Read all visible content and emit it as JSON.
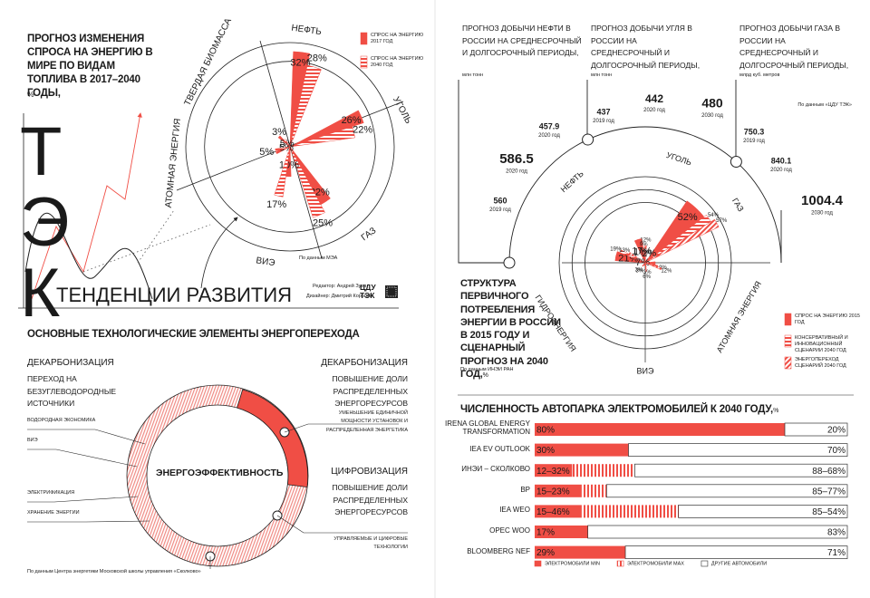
{
  "tek": {
    "letters": [
      "Т",
      "Э",
      "К"
    ],
    "heading": "ТЕНДЕНЦИИ РАЗВИТИЯ",
    "editor": "Редактор: Андрей Зуев",
    "designer": "Дизайнер: Дмитрий Королев",
    "logo": [
      "ЦДУ",
      "ТЭК"
    ]
  },
  "chart_data": [
    {
      "type": "polar",
      "title": "ПРОГНОЗ ИЗМЕНЕНИЯ СПРОСА НА ЭНЕРГИЮ В МИРЕ ПО ВИДАМ ТОПЛИВА В 2017–2040 ГОДЫ,",
      "unit": "%",
      "categories": [
        "НЕФТЬ",
        "УГОЛЬ",
        "ГАЗ",
        "ВИЭ",
        "АТОМНАЯ ЭНЕРГИЯ",
        "ТВЕРДАЯ БИОМАССА"
      ],
      "rlim": [
        0,
        35
      ],
      "series": [
        {
          "name": "СПРОС НА ЭНЕРГИЮ 2017 ГОД",
          "color": "#f04e45",
          "values": [
            32,
            26,
            22,
            10,
            5,
            5
          ],
          "value_labels": [
            "32%",
            "26%",
            "22%",
            "10%",
            "5%",
            "5%"
          ]
        },
        {
          "name": "СПРОС НА ЭНЕРГИЮ 2040 ГОД",
          "color": "#f04e45",
          "pattern": "horizontal",
          "values": [
            28,
            22,
            25,
            17,
            5,
            3
          ],
          "value_labels": [
            "28%",
            "22%",
            "25%",
            "17%",
            "5%",
            "3%"
          ]
        }
      ],
      "source": "По данным МЭА"
    },
    {
      "type": "polar",
      "title": "СТРУКТУРА ПЕРВИЧНОГО ПОТРЕБЛЕНИЯ ЭНЕРГИИ В РОССИИ В 2015 ГОДУ И СЦЕНАРНЫЙ ПРОГНОЗ НА 2040 ГОД,",
      "unit": "%",
      "categories": [
        "НЕФТЬ",
        "УГОЛЬ",
        "ГАЗ",
        "АТОМНАЯ ЭНЕРГИЯ",
        "ВИЭ",
        "ГИДРОЭНЕРГИЯ"
      ],
      "rlim": [
        0,
        60
      ],
      "series": [
        {
          "name": "СПРОС НА ЭНЕРГИЮ 2015 ГОД",
          "color": "#f04e45",
          "values": [
            21,
            17,
            52,
            7,
            1,
            2
          ],
          "value_labels": [
            "21%",
            "17%",
            "52%",
            "7%",
            "1%",
            "2%"
          ]
        },
        {
          "name": "КОНСЕРВАТИВНЫЙ И ИННОВАЦИОННЫЙ СЦЕНАРИИ 2040 ГОД",
          "color": "#f04e45",
          "pattern": "horizontal",
          "values": [
            19,
            9,
            54,
            9,
            3,
            3
          ],
          "value_labels": [
            "19%",
            "9%",
            "54%",
            "9%",
            "3%",
            "3%"
          ]
        },
        {
          "name": "ЭНЕРГОПЕРЕХОД СЦЕНАРИЙ 2040 ГОД",
          "color": "#f04e45",
          "pattern": "diagonal",
          "values": [
            13,
            12,
            57,
            12,
            6,
            3
          ],
          "value_labels": [
            "13%",
            "12%",
            "57%",
            "12%",
            "6%",
            "3%"
          ]
        }
      ],
      "source": "По данным ИНЭИ РАН"
    },
    {
      "type": "bar",
      "orientation": "horizontal",
      "title": "ЧИСЛЕННОСТЬ АВТОПАРКА ЭЛЕКТРОМОБИЛЕЙ К 2040 ГОДУ,",
      "unit": "%",
      "categories": [
        "IRENA GLOBAL ENERGY TRANSFORMATION",
        "IEA EV OUTLOOK",
        "ИНЭИ – СКОЛКОВО",
        "BP",
        "IEA WEO",
        "OPEC WOO",
        "BLOOMBERG NEF"
      ],
      "xlim": [
        0,
        100
      ],
      "series": [
        {
          "name": "ЭЛЕКТРОМОБИЛИ MIN",
          "color": "#f04e45",
          "values": [
            80,
            30,
            12,
            15,
            15,
            17,
            29
          ],
          "value_labels": [
            "80%",
            "30%",
            "12–32%",
            "15–23%",
            "15–46%",
            "17%",
            "29%"
          ]
        },
        {
          "name": "ЭЛЕКТРОМОБИЛИ MAX",
          "color": "#f04e45",
          "pattern": "vertical",
          "values": [
            null,
            null,
            32,
            23,
            46,
            null,
            null
          ]
        },
        {
          "name": "ДРУГИЕ АВТОМОБИЛИ",
          "color": "#ffffff",
          "values": [
            20,
            70,
            68,
            77,
            54,
            83,
            71
          ],
          "value_labels": [
            "20%",
            "70%",
            "88–68%",
            "85–77%",
            "85–54%",
            "83%",
            "71%"
          ]
        }
      ]
    }
  ],
  "production": {
    "source": "По данным «ЦДУ ТЭК»",
    "items": [
      {
        "title": "ПРОГНОЗ ДОБЫЧИ НЕФТИ В РОССИИ НА СРЕДНЕСРОЧНЫЙ И ДОЛГОСРОЧНЫЙ ПЕРИОДЫ,",
        "unit": "млн тонн",
        "points": [
          {
            "value": 560,
            "year": "2019 год"
          },
          {
            "value": 586.5,
            "year": "2020 год"
          },
          {
            "value": 457.9,
            "year": "2020 год"
          }
        ]
      },
      {
        "title": "ПРОГНОЗ ДОБЫЧИ УГЛЯ В РОССИИ НА СРЕДНЕСРОЧНЫЙ И ДОЛГОСРОЧНЫЙ ПЕРИОДЫ,",
        "unit": "млн тонн",
        "points": [
          {
            "value": 437,
            "year": "2019 год"
          },
          {
            "value": 442,
            "year": "2020 год"
          },
          {
            "value": 480,
            "year": "2030 год"
          }
        ]
      },
      {
        "title": "ПРОГНОЗ ДОБЫЧИ ГАЗА В РОССИИ НА СРЕДНЕСРОЧНЫЙ И ДОЛГОСРОЧНЫЙ ПЕРИОДЫ,",
        "unit": "млрд куб. метров",
        "points": [
          {
            "value": 750.3,
            "year": "2019 год"
          },
          {
            "value": 840.1,
            "year": "2020 год"
          },
          {
            "value": 1004.4,
            "year": "2030 год"
          }
        ]
      }
    ]
  },
  "transition": {
    "title": "ОСНОВНЫЕ ТЕХНОЛОГИЧЕСКИЕ ЭЛЕМЕНТЫ ЭНЕРГОПЕРЕХОДА",
    "center": "ЭНЕРГОЭФФЕКТИВНОСТЬ",
    "left": {
      "heading": "ДЕКАРБОНИЗАЦИЯ",
      "text": "ПЕРЕХОД НА БЕЗУГЛЕВОДОРОДНЫЕ ИСТОЧНИКИ",
      "items": [
        "ВОДОРОДНАЯ ЭКОНОМИКА",
        "ВИЭ",
        "ЭЛЕКТРИФИКАЦИЯ",
        "ХРАНЕНИЕ ЭНЕРГИИ"
      ]
    },
    "right": [
      {
        "heading": "ДЕКАРБОНИЗАЦИЯ",
        "text": "ПОВЫШЕНИЕ ДОЛИ РАСПРЕДЕЛЕННЫХ ЭНЕРГОРЕСУРСОВ",
        "item": "УМЕНЬШЕНИЕ ЕДИНИЧНОЙ МОЩНОСТИ УСТАНОВОК И РАСПРЕДЕЛЕННАЯ ЭНЕРГЕТИКА"
      },
      {
        "heading": "ЦИФРОВИЗАЦИЯ",
        "text": "ПОВЫШЕНИЕ ДОЛИ РАСПРЕДЕЛЕННЫХ ЭНЕРГОРЕСУРСОВ",
        "item": "УПРАВЛЯЕМЫЕ И ЦИФРОВЫЕ ТЕХНОЛОГИИ"
      }
    ],
    "source": "По данным Центра энергетики Московской школы управления «Сколково»"
  }
}
